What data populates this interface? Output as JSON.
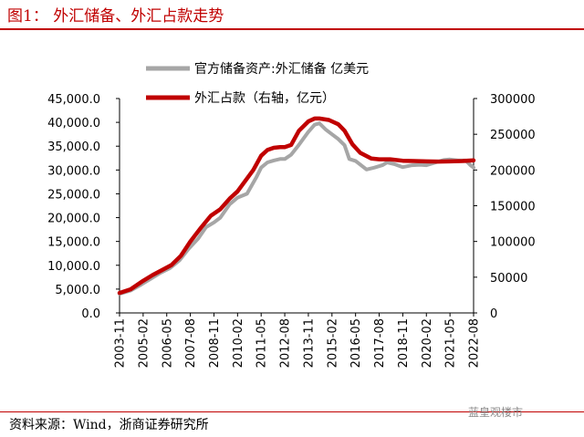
{
  "figure": {
    "title": "图1：  外汇储备、外汇占款走势",
    "source": "资料来源：Wind，浙商证券研究所",
    "watermark": "蓝皇观楼市",
    "colors": {
      "accent": "#c00000",
      "reserves_line": "#a6a6a6",
      "funds_line": "#c00000"
    }
  },
  "chart_data": {
    "type": "line",
    "x_tick_labels": [
      "2003-11",
      "2005-02",
      "2006-05",
      "2007-08",
      "2008-11",
      "2010-02",
      "2011-05",
      "2012-08",
      "2013-11",
      "2015-02",
      "2016-05",
      "2017-08",
      "2018-11",
      "2020-02",
      "2021-05",
      "2022-08"
    ],
    "x_range": [
      "2003-11",
      "2022-08"
    ],
    "left_axis": {
      "ticks": [
        "0.0",
        "5,000.0",
        "10,000.0",
        "15,000.0",
        "20,000.0",
        "25,000.0",
        "30,000.0",
        "35,000.0",
        "40,000.0",
        "45,000.0"
      ],
      "ylim": [
        0,
        45000
      ]
    },
    "right_axis": {
      "ticks": [
        "0",
        "50000",
        "100000",
        "150000",
        "200000",
        "250000",
        "300000"
      ],
      "ylim": [
        0,
        300000
      ]
    },
    "legend_position": "top-center",
    "grid": false,
    "series": [
      {
        "name": "官方储备资产:外汇储备  亿美元",
        "axis": "left",
        "color": "#a6a6a6",
        "points": [
          [
            "2003-11",
            4000
          ],
          [
            "2004-06",
            4700
          ],
          [
            "2005-01",
            6000
          ],
          [
            "2005-07",
            7200
          ],
          [
            "2006-01",
            8400
          ],
          [
            "2006-07",
            9400
          ],
          [
            "2007-01",
            11000
          ],
          [
            "2007-07",
            13500
          ],
          [
            "2008-01",
            15600
          ],
          [
            "2008-06",
            18000
          ],
          [
            "2008-11",
            19000
          ],
          [
            "2009-03",
            20000
          ],
          [
            "2009-09",
            22800
          ],
          [
            "2010-02",
            24200
          ],
          [
            "2010-08",
            25000
          ],
          [
            "2011-02",
            28500
          ],
          [
            "2011-05",
            30500
          ],
          [
            "2011-09",
            31600
          ],
          [
            "2012-01",
            32000
          ],
          [
            "2012-05",
            32300
          ],
          [
            "2012-08",
            32300
          ],
          [
            "2012-12",
            33200
          ],
          [
            "2013-05",
            35300
          ],
          [
            "2013-11",
            38000
          ],
          [
            "2014-03",
            39500
          ],
          [
            "2014-06",
            39800
          ],
          [
            "2014-10",
            38500
          ],
          [
            "2015-02",
            37500
          ],
          [
            "2015-06",
            36500
          ],
          [
            "2015-10",
            35200
          ],
          [
            "2016-01",
            32300
          ],
          [
            "2016-05",
            31900
          ],
          [
            "2016-12",
            30100
          ],
          [
            "2017-05",
            30500
          ],
          [
            "2017-10",
            31000
          ],
          [
            "2018-01",
            31600
          ],
          [
            "2018-06",
            31200
          ],
          [
            "2018-11",
            30600
          ],
          [
            "2019-05",
            31000
          ],
          [
            "2019-10",
            31100
          ],
          [
            "2020-02",
            31000
          ],
          [
            "2020-08",
            31600
          ],
          [
            "2021-01",
            32100
          ],
          [
            "2021-05",
            32200
          ],
          [
            "2021-10",
            32000
          ],
          [
            "2022-03",
            32000
          ],
          [
            "2022-06",
            31000
          ],
          [
            "2022-08",
            30500
          ]
        ]
      },
      {
        "name": "外汇占款（右轴，亿元）",
        "axis": "right",
        "color": "#c00000",
        "points": [
          [
            "2003-11",
            28000
          ],
          [
            "2004-06",
            33000
          ],
          [
            "2005-02",
            45000
          ],
          [
            "2005-08",
            53000
          ],
          [
            "2006-02",
            60000
          ],
          [
            "2006-08",
            67000
          ],
          [
            "2007-02",
            80000
          ],
          [
            "2007-08",
            100000
          ],
          [
            "2008-03",
            120000
          ],
          [
            "2008-09",
            136000
          ],
          [
            "2009-03",
            145000
          ],
          [
            "2009-09",
            160000
          ],
          [
            "2010-02",
            170000
          ],
          [
            "2010-06",
            182000
          ],
          [
            "2010-12",
            200000
          ],
          [
            "2011-05",
            220000
          ],
          [
            "2011-09",
            228000
          ],
          [
            "2012-01",
            231000
          ],
          [
            "2012-05",
            232000
          ],
          [
            "2012-08",
            232000
          ],
          [
            "2012-12",
            235000
          ],
          [
            "2013-05",
            255000
          ],
          [
            "2013-11",
            268000
          ],
          [
            "2014-03",
            272000
          ],
          [
            "2014-06",
            272000
          ],
          [
            "2014-12",
            270000
          ],
          [
            "2015-06",
            264000
          ],
          [
            "2015-10",
            255000
          ],
          [
            "2016-03",
            236000
          ],
          [
            "2016-08",
            224000
          ],
          [
            "2017-03",
            216000
          ],
          [
            "2017-08",
            215000
          ],
          [
            "2018-03",
            215000
          ],
          [
            "2018-11",
            213000
          ],
          [
            "2019-06",
            212500
          ],
          [
            "2020-02",
            212000
          ],
          [
            "2020-10",
            211800
          ],
          [
            "2021-05",
            212000
          ],
          [
            "2022-01",
            212500
          ],
          [
            "2022-08",
            213500
          ]
        ]
      }
    ]
  }
}
